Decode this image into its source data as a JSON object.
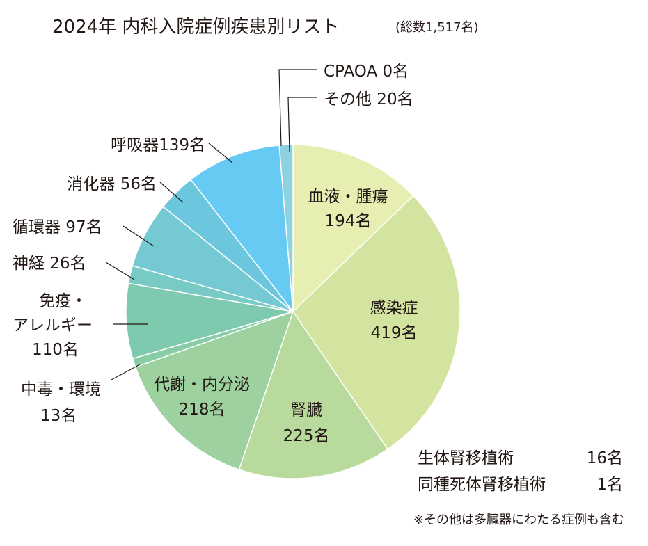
{
  "chart_data": {
    "type": "pie",
    "title": "2024年 内科入院症例疾患別リスト",
    "subtitle": "(総数1,517名)",
    "start": "top",
    "direction": "clockwise",
    "slices": [
      {
        "name": "血液・腫瘍",
        "value": 194,
        "label": "194名",
        "color": "#e6eeb2"
      },
      {
        "name": "感染症",
        "value": 419,
        "label": "419名",
        "color": "#d3e3a0"
      },
      {
        "name": "腎臓",
        "value": 225,
        "label": "225名",
        "color": "#b8da9c"
      },
      {
        "name": "代謝・内分泌",
        "value": 218,
        "label": "218名",
        "color": "#9dd19f"
      },
      {
        "name": "中毒・環境",
        "value": 13,
        "label": "13名",
        "color": "#88cda8"
      },
      {
        "name": "免疫・アレルギー",
        "value": 110,
        "label": "110名",
        "color": "#7dcaae"
      },
      {
        "name": "神経",
        "value": 26,
        "label": "26名",
        "color": "#78cbc4"
      },
      {
        "name": "循環器",
        "value": 97,
        "label": "97名",
        "color": "#74c9d2"
      },
      {
        "name": "消化器",
        "value": 56,
        "label": "56名",
        "color": "#6cc6dd"
      },
      {
        "name": "呼吸器",
        "value": 139,
        "label": "139名",
        "color": "#66caf2"
      },
      {
        "name": "その他",
        "value": 20,
        "label": "20名",
        "color": "#8ed1e0"
      },
      {
        "name": "CPAOA",
        "value": 0,
        "label": "0名",
        "color": "#8ed1e0"
      }
    ],
    "outer_labels": {
      "cpaoa": "CPAOA 0名",
      "other": "その他 20名",
      "respiratory": "呼吸器139名",
      "digestive": "消化器 56名",
      "circulatory": "循環器 97名",
      "neuro": "神経 26名",
      "immune_1": "免疫・",
      "immune_2": "アレルギー",
      "immune_3": "110名",
      "poison_1": "中毒・環境",
      "poison_2": "13名"
    },
    "inner_labels": {
      "blood_1": "血液・腫瘍",
      "blood_2": "194名",
      "infection_1": "感染症",
      "infection_2": "419名",
      "kidney_1": "腎臓",
      "kidney_2": "225名",
      "metabolic_1": "代謝・内分泌",
      "metabolic_2": "218名"
    },
    "notes": {
      "transplant": [
        {
          "label": "生体腎移植術",
          "value": "16名"
        },
        {
          "label": "同種死体腎移植術",
          "value": "1名"
        }
      ],
      "footnote": "※その他は多臓器にわたる症例も含む"
    }
  }
}
